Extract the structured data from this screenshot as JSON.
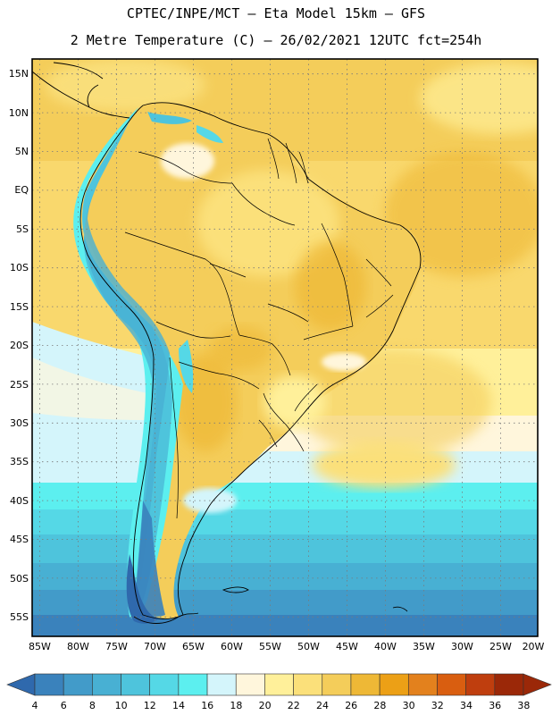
{
  "title": {
    "line1": "CPTEC/INPE/MCT –   Eta Model 15km – GFS",
    "line2": "2 Metre Temperature (C) – 26/02/2021 12UTC fct=254h"
  },
  "axes": {
    "lat_labels": [
      "15N",
      "10N",
      "5N",
      "EQ",
      "5S",
      "10S",
      "15S",
      "20S",
      "25S",
      "30S",
      "35S",
      "40S",
      "45S",
      "50S",
      "55S"
    ],
    "lon_labels": [
      "85W",
      "80W",
      "75W",
      "70W",
      "65W",
      "60W",
      "55W",
      "50W",
      "45W",
      "40W",
      "35W",
      "30W",
      "25W",
      "20W"
    ],
    "lat_range": [
      15.8,
      -58
    ],
    "lon_range": [
      -85.3,
      -19.5
    ]
  },
  "colorbar": {
    "labels": [
      "4",
      "6",
      "8",
      "10",
      "12",
      "14",
      "16",
      "18",
      "20",
      "22",
      "24",
      "26",
      "28",
      "30",
      "32",
      "34",
      "36",
      "38"
    ],
    "colors": [
      "#2f69ad",
      "#3a82bc",
      "#429bc9",
      "#48b0d3",
      "#4ec4dc",
      "#55d8e6",
      "#5cefef",
      "#d4f5fb",
      "#fff6dc",
      "#fff09a",
      "#fbe07a",
      "#f4cd5a",
      "#eeb836",
      "#eca016",
      "#e3811d",
      "#d95e10",
      "#bf3e0e",
      "#9b2808"
    ]
  },
  "chart_data": {
    "type": "heatmap",
    "title": "2 Metre Temperature (C) – 26/02/2021 12UTC fct=254h",
    "model": "CPTEC/INPE/MCT – Eta Model 15km – GFS",
    "variable_unit": "C",
    "levels": [
      4,
      6,
      8,
      10,
      12,
      14,
      16,
      18,
      20,
      22,
      24,
      26,
      28,
      30,
      32,
      34,
      36,
      38
    ],
    "region": "South America",
    "xlim": [
      -85.3,
      -19.5
    ],
    "ylim": [
      -58,
      15.8
    ]
  }
}
